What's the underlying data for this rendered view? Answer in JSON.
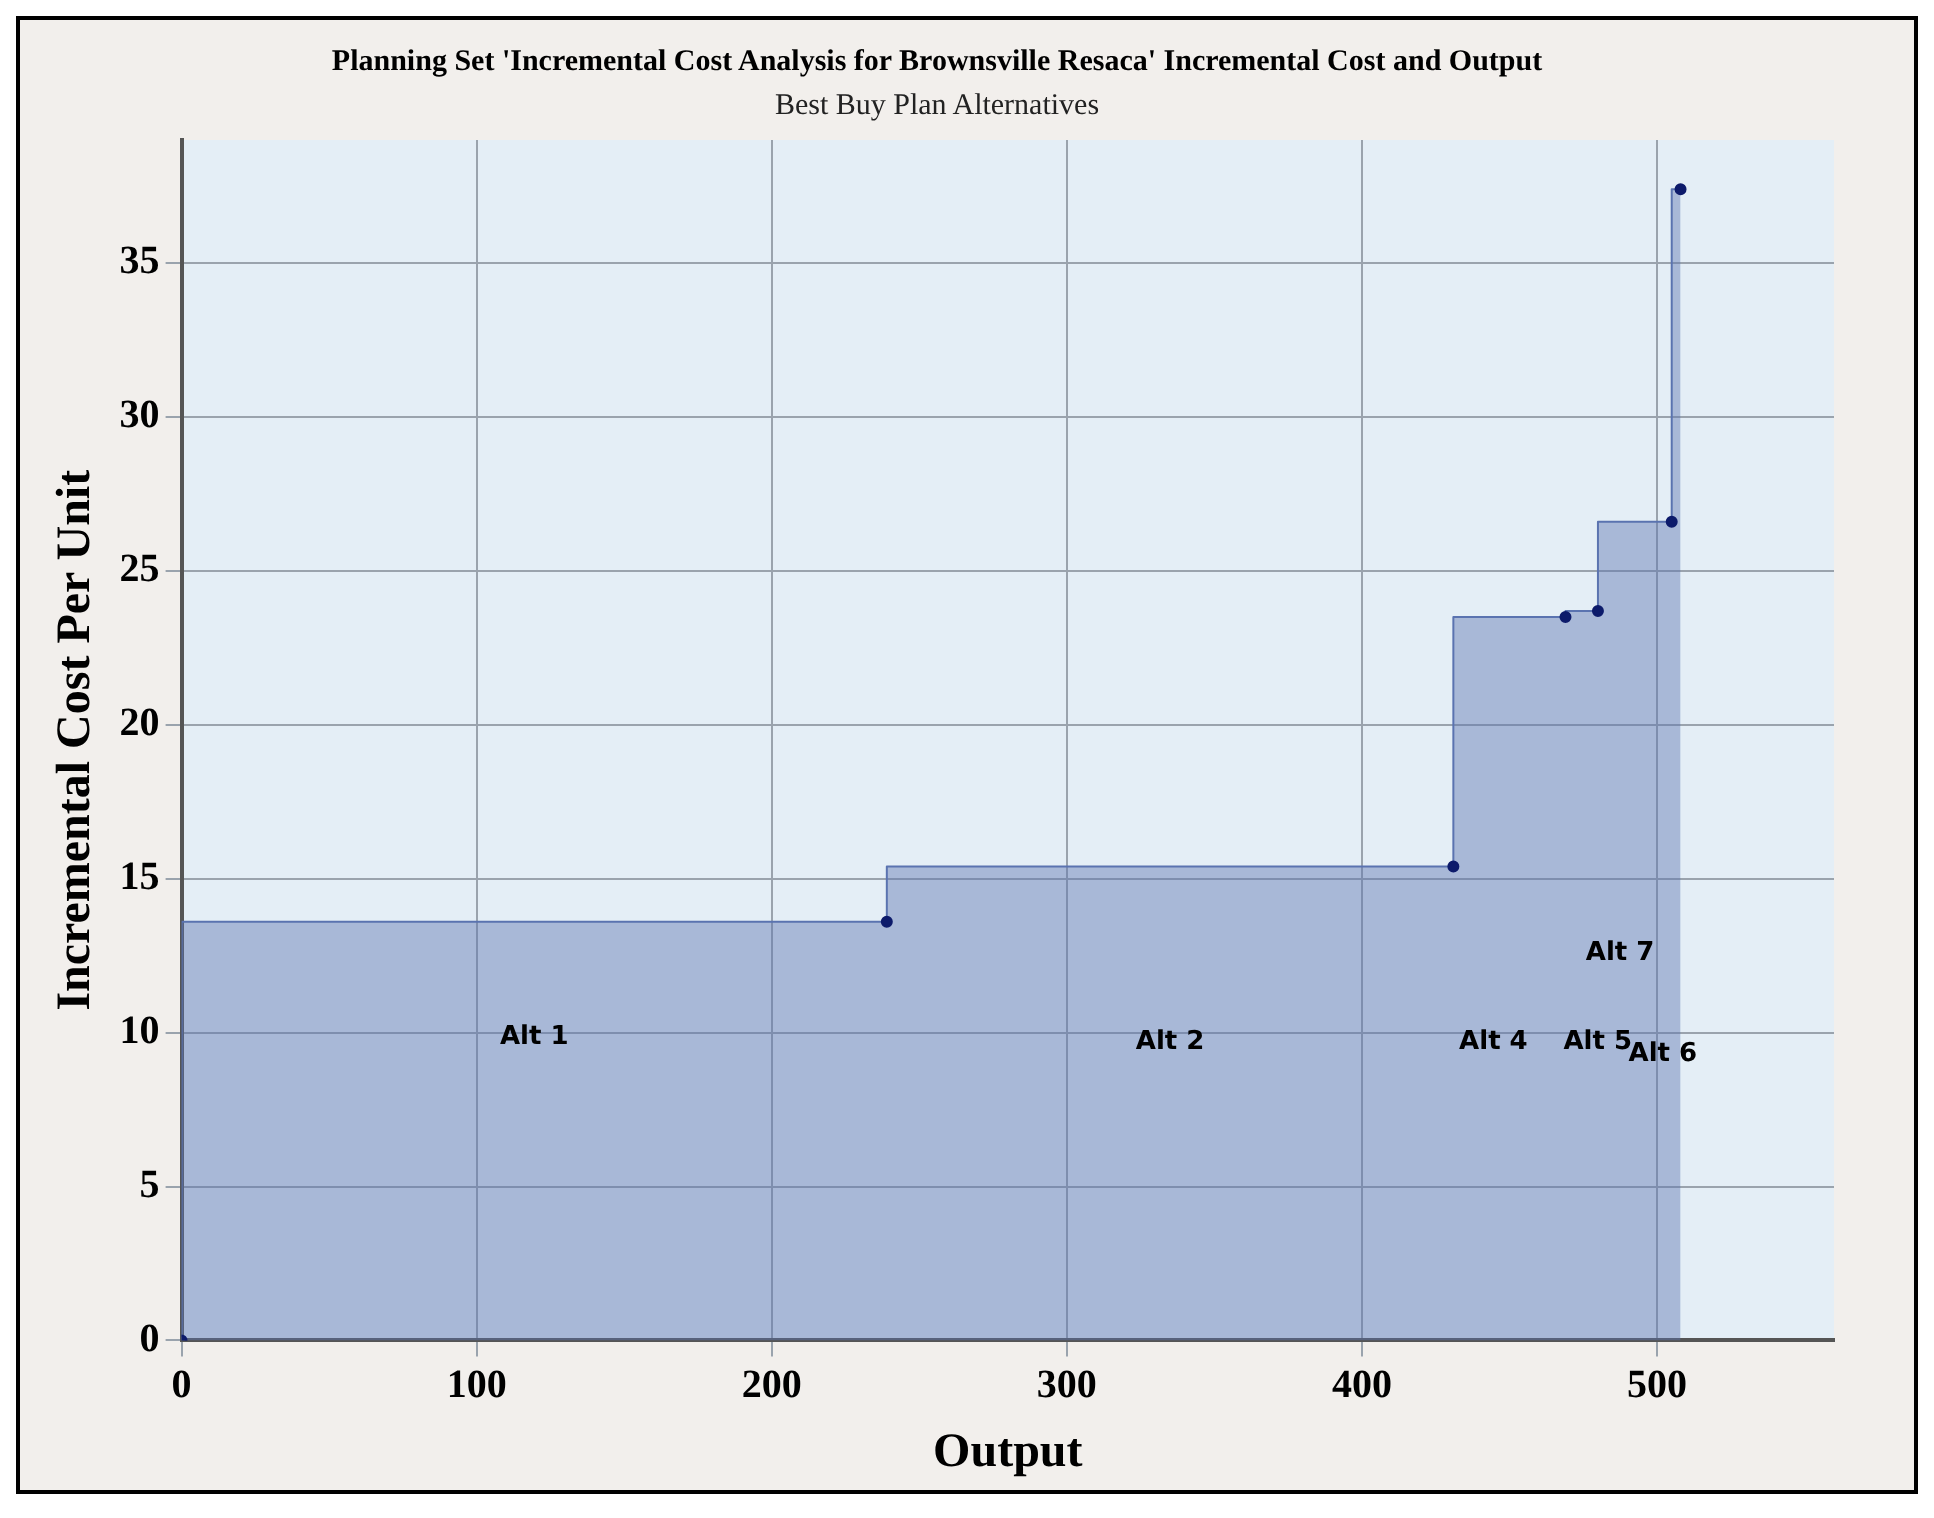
{
  "chart_data": {
    "type": "step",
    "title": "Planning Set 'Incremental Cost Analysis for Brownsville Resaca' Incremental Cost and Output",
    "subtitle": "Best Buy Plan Alternatives",
    "xlabel": "Output",
    "ylabel": "Incremental Cost Per Unit",
    "x": [
      0,
      239,
      431,
      469,
      480,
      505,
      508
    ],
    "series": [
      {
        "color": "#5a73b0",
        "values": [
          0,
          13.6,
          15.4,
          23.5,
          23.7,
          26.6,
          37.4
        ]
      }
    ],
    "xlim": [
      0,
      560
    ],
    "xticks": [
      0,
      100,
      200,
      300,
      400,
      500
    ],
    "ylim": [
      0,
      39
    ],
    "yticks": [
      0,
      5,
      10,
      15,
      20,
      25,
      30,
      35
    ],
    "grid": true,
    "legend": false,
    "marker": "circle",
    "annotations": [
      "Alt 1",
      "Alt 2",
      "Alt 4",
      "Alt 5",
      "Alt 6",
      "Alt 7"
    ]
  }
}
